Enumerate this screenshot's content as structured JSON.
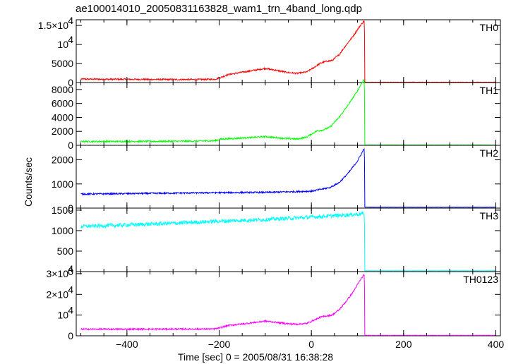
{
  "chart_data": {
    "type": "line",
    "title": "ae100014010_20050831163828_wam1_trn_4band_long.qdp",
    "xlabel": "Time [sec] 0 = 2005/08/31 16:38:28",
    "ylabel": "Counts/sec",
    "xlim": [
      -510,
      410
    ],
    "x_ticks": [
      "−400",
      "−200",
      "0",
      "200",
      "400"
    ],
    "x_tick_values": [
      -400,
      -200,
      0,
      200,
      400
    ],
    "grid": false,
    "panels": [
      {
        "name": "TH0",
        "color": "#ff0000",
        "ylim": [
          0,
          16500
        ],
        "y_ticks": [
          {
            "value": 0,
            "label": "0"
          },
          {
            "value": 5000,
            "label": "5000"
          },
          {
            "value": 10000,
            "label": "10",
            "exp": "4"
          },
          {
            "value": 15000,
            "label": "1.5×10",
            "exp": "4"
          }
        ],
        "x": [
          -500,
          -400,
          -300,
          -250,
          -210,
          -195,
          -180,
          -150,
          -120,
          -100,
          -80,
          -50,
          -30,
          -10,
          5,
          20,
          30,
          45,
          60,
          75,
          90,
          105,
          115,
          116,
          130,
          200,
          300,
          400
        ],
        "y": [
          900,
          850,
          800,
          800,
          850,
          1400,
          2100,
          2700,
          3300,
          3700,
          3300,
          2600,
          2400,
          2800,
          3900,
          5100,
          5500,
          5800,
          7300,
          9800,
          12100,
          14800,
          16300,
          100,
          100,
          100,
          100,
          100
        ]
      },
      {
        "name": "TH1",
        "color": "#00ff00",
        "ylim": [
          0,
          9000
        ],
        "y_ticks": [
          {
            "value": 0,
            "label": "0"
          },
          {
            "value": 2000,
            "label": "2000"
          },
          {
            "value": 4000,
            "label": "4000"
          },
          {
            "value": 6000,
            "label": "6000"
          },
          {
            "value": 8000,
            "label": "8000"
          }
        ],
        "x": [
          -500,
          -400,
          -300,
          -250,
          -210,
          -195,
          -150,
          -100,
          -60,
          -30,
          -10,
          10,
          25,
          40,
          60,
          80,
          100,
          110,
          115,
          116,
          130,
          200,
          300,
          400
        ],
        "y": [
          550,
          560,
          580,
          600,
          650,
          900,
          1050,
          1250,
          1000,
          900,
          1200,
          2000,
          2200,
          2600,
          4000,
          5800,
          7800,
          9000,
          9500,
          50,
          50,
          50,
          50,
          50
        ]
      },
      {
        "name": "TH2",
        "color": "#0000ff",
        "ylim": [
          0,
          2600
        ],
        "y_ticks": [
          {
            "value": 0,
            "label": "0"
          },
          {
            "value": 1000,
            "label": "1000"
          },
          {
            "value": 2000,
            "label": "2000"
          }
        ],
        "x": [
          -500,
          -400,
          -300,
          -200,
          -100,
          0,
          40,
          60,
          80,
          100,
          110,
          115,
          116,
          130,
          200,
          300,
          400
        ],
        "y": [
          580,
          600,
          620,
          640,
          650,
          700,
          850,
          1050,
          1450,
          1950,
          2300,
          2500,
          40,
          40,
          40,
          40,
          40
        ]
      },
      {
        "name": "TH3",
        "color": "#00ffff",
        "ylim": [
          0,
          1550
        ],
        "y_ticks": [
          {
            "value": 0,
            "label": "0"
          },
          {
            "value": 500,
            "label": "500"
          },
          {
            "value": 1000,
            "label": "1000"
          },
          {
            "value": 1500,
            "label": "1500"
          }
        ],
        "x": [
          -500,
          -400,
          -300,
          -200,
          -100,
          0,
          100,
          115,
          116,
          130,
          200,
          300,
          400
        ],
        "y": [
          1100,
          1140,
          1180,
          1230,
          1270,
          1330,
          1400,
          1420,
          20,
          20,
          20,
          20,
          20
        ]
      },
      {
        "name": "TH0123",
        "color": "#ff00ff",
        "ylim": [
          0,
          31000
        ],
        "y_ticks": [
          {
            "value": 0,
            "label": "0"
          },
          {
            "value": 10000,
            "label": "10",
            "exp": "4"
          },
          {
            "value": 20000,
            "label": "2×10",
            "exp": "4"
          },
          {
            "value": 30000,
            "label": "3×10",
            "exp": "4"
          }
        ],
        "x": [
          -500,
          -400,
          -300,
          -210,
          -195,
          -180,
          -150,
          -120,
          -100,
          -80,
          -50,
          -30,
          -10,
          5,
          20,
          30,
          45,
          60,
          75,
          90,
          105,
          115,
          116,
          130,
          200,
          300,
          400
        ],
        "y": [
          3200,
          3200,
          3250,
          3300,
          4000,
          5000,
          5700,
          6500,
          7100,
          6600,
          5800,
          5600,
          6000,
          7500,
          9000,
          9500,
          10000,
          12500,
          16500,
          21000,
          26500,
          29800,
          200,
          200,
          200,
          200,
          200
        ]
      }
    ]
  }
}
